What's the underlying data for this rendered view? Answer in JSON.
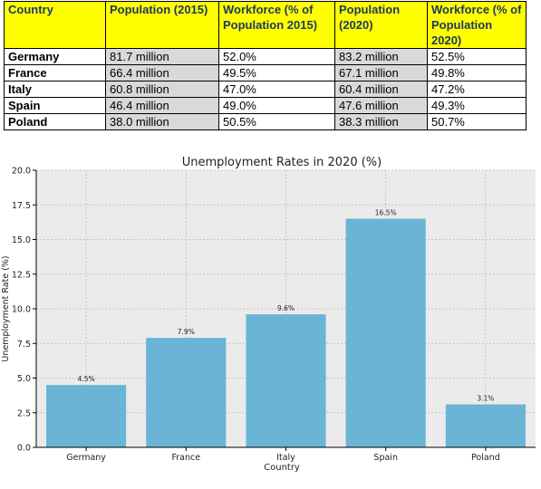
{
  "table": {
    "headers": [
      "Country",
      "Population (2015)",
      "Workforce (% of Population 2015)",
      "Population (2020)",
      "Workforce (% of Population 2020)"
    ],
    "rows": [
      [
        "Germany",
        "81.7 million",
        "52.0%",
        "83.2 million",
        "52.5%"
      ],
      [
        "France",
        "66.4 million",
        "49.5%",
        "67.1 million",
        "49.8%"
      ],
      [
        "Italy",
        "60.8 million",
        "47.0%",
        "60.4 million",
        "47.2%"
      ],
      [
        "Spain",
        "46.4 million",
        "49.0%",
        "47.6 million",
        "49.3%"
      ],
      [
        "Poland",
        "38.0 million",
        "50.5%",
        "38.3 million",
        "50.7%"
      ]
    ]
  },
  "chart_data": {
    "type": "bar",
    "title": "Unemployment Rates in 2020 (%)",
    "xlabel": "Country",
    "ylabel": "Unemployment Rate (%)",
    "categories": [
      "Germany",
      "France",
      "Italy",
      "Spain",
      "Poland"
    ],
    "values": [
      4.5,
      7.9,
      9.6,
      16.5,
      3.1
    ],
    "data_labels": [
      "4.5%",
      "7.9%",
      "9.6%",
      "16.5%",
      "3.1%"
    ],
    "ylim": [
      0,
      20
    ],
    "yticks": [
      "0.0",
      "2.5",
      "5.0",
      "7.5",
      "10.0",
      "12.5",
      "15.0",
      "17.5",
      "20.0"
    ],
    "grid": true,
    "bar_color": "#6ab4d6",
    "plot_background": "#ebebeb"
  }
}
